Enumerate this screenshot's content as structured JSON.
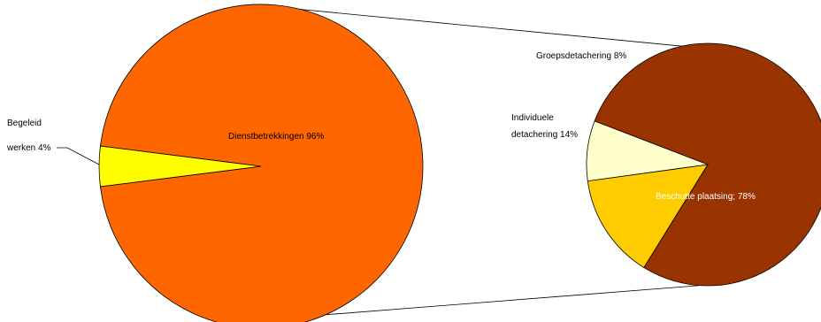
{
  "chart_data": [
    {
      "type": "pie",
      "slices": [
        {
          "label": "Dienstbetrekkingen 96%",
          "value": 96,
          "color": "#ff6600"
        },
        {
          "label": "Begeleid werken 4%",
          "value": 4,
          "color": "#ffff00"
        }
      ]
    },
    {
      "type": "pie",
      "slices": [
        {
          "label": "Beschutte plaatsing; 78%",
          "value": 78,
          "color": "#993300"
        },
        {
          "label": "Individuele detachering 14%",
          "value": 14,
          "color": "#ffcc00"
        },
        {
          "label": "Groepsdetachering 8%",
          "value": 8,
          "color": "#ffffcc"
        }
      ]
    }
  ],
  "labels": {
    "big_main": "Dienstbetrekkingen 96%",
    "big_small_line1": "Begeleid",
    "big_small_line2": "werken 4%",
    "small_main": "Beschutte plaatsing; 78%",
    "small_mid_line1": "Individuele",
    "small_mid_line2": "detachering 14%",
    "small_top": "Groepsdetachering 8%"
  }
}
